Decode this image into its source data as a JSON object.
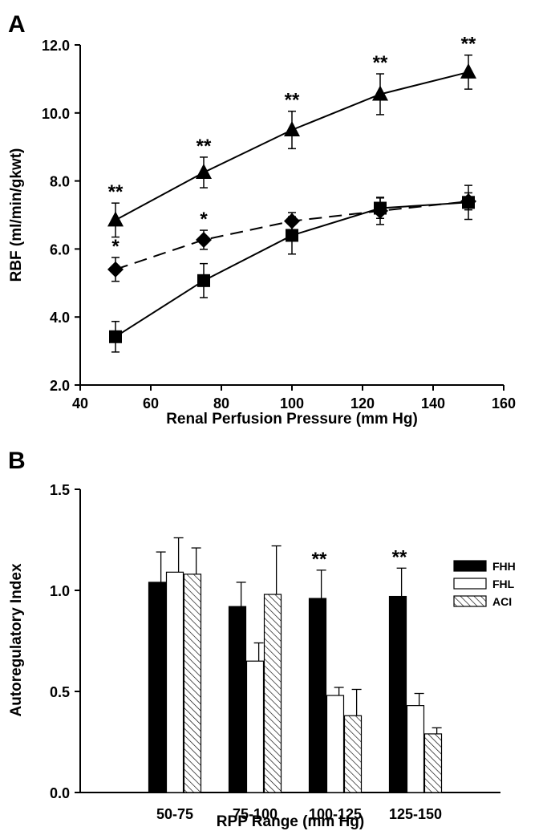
{
  "chart_data": [
    {
      "panel_label": "A",
      "type": "line",
      "xlabel": "Renal Perfusion Pressure (mm Hg)",
      "ylabel": "RBF (ml/min/gkwt)",
      "xlim": [
        40,
        160
      ],
      "ylim": [
        2.0,
        12.0
      ],
      "xticks": [
        "40",
        "60",
        "80",
        "100",
        "120",
        "140",
        "160"
      ],
      "yticks": [
        "2.0",
        "4.0",
        "6.0",
        "8.0",
        "10.0",
        "12.0"
      ],
      "x": [
        50,
        75,
        100,
        125,
        150
      ],
      "series": [
        {
          "marker": "triangle",
          "style": "solid",
          "values": [
            6.85,
            8.25,
            9.5,
            10.55,
            11.2
          ],
          "errors": [
            0.5,
            0.45,
            0.55,
            0.6,
            0.5
          ],
          "annotations": [
            "**",
            "**",
            "**",
            "**",
            "**"
          ]
        },
        {
          "marker": "diamond",
          "style": "dashed",
          "values": [
            5.4,
            6.27,
            6.82,
            7.12,
            7.4
          ],
          "errors": [
            0.35,
            0.28,
            0.25,
            0.4,
            0.25
          ],
          "annotations": [
            "*",
            "*",
            "",
            "",
            ""
          ]
        },
        {
          "marker": "square",
          "style": "solid",
          "values": [
            3.42,
            5.07,
            6.4,
            7.2,
            7.37
          ],
          "errors": [
            0.45,
            0.5,
            0.55,
            0.3,
            0.5
          ],
          "annotations": [
            "",
            "",
            "",
            "",
            ""
          ]
        }
      ]
    },
    {
      "panel_label": "B",
      "type": "bar",
      "xlabel": "RPP Range (mm Hg)",
      "ylabel": "Autoregulatory Index",
      "ylim": [
        0.0,
        1.5
      ],
      "yticks": [
        "0.0",
        "0.5",
        "1.0",
        "1.5"
      ],
      "categories": [
        "50-75",
        "75-100",
        "100-125",
        "125-150"
      ],
      "legend_position": "top-right",
      "series": [
        {
          "name": "FHH",
          "fill": "solid-black",
          "values": [
            1.04,
            0.92,
            0.96,
            0.97
          ],
          "errors": [
            0.15,
            0.12,
            0.14,
            0.14
          ]
        },
        {
          "name": "FHL",
          "fill": "white",
          "values": [
            1.09,
            0.65,
            0.48,
            0.43
          ],
          "errors": [
            0.17,
            0.09,
            0.04,
            0.06
          ]
        },
        {
          "name": "ACI",
          "fill": "hatched",
          "values": [
            1.08,
            0.98,
            0.38,
            0.29
          ],
          "errors": [
            0.13,
            0.24,
            0.13,
            0.03
          ]
        }
      ],
      "annotations": [
        {
          "category": "100-125",
          "series": "FHH",
          "text": "**"
        },
        {
          "category": "125-150",
          "series": "FHH",
          "text": "**"
        }
      ]
    }
  ]
}
